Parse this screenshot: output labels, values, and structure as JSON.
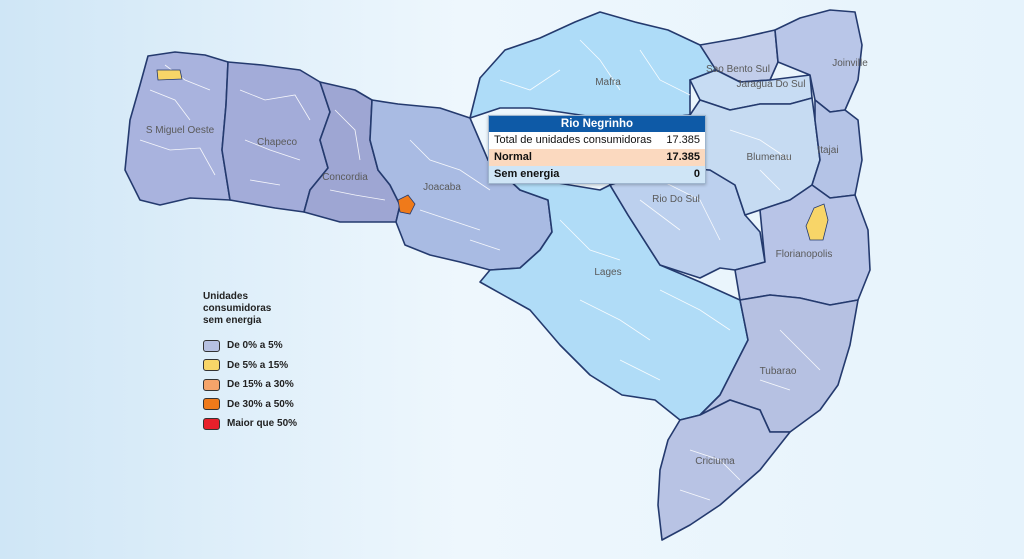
{
  "colors": {
    "low": "#b6c1e2",
    "low_dark": "#9aa5d3",
    "highlight_region": "#aed9f7",
    "yellow": "#f8d568",
    "orange": "#ef7a1a",
    "border": "#243a6e"
  },
  "regions": [
    {
      "id": "miguel-oeste",
      "label": "S Miguel Oeste",
      "color": "#a9b3de"
    },
    {
      "id": "chapeco",
      "label": "Chapeco",
      "color": "#a3acd9"
    },
    {
      "id": "concordia",
      "label": "Concordia",
      "color": "#9ea6d3"
    },
    {
      "id": "joacaba",
      "label": "Joacaba",
      "color": "#a9bbe3"
    },
    {
      "id": "mafra",
      "label": "Mafra",
      "color": "#aedcf8"
    },
    {
      "id": "lages",
      "label": "Lages",
      "color": "#b0dcf7"
    },
    {
      "id": "rio-do-sul",
      "label": "Rio Do Sul",
      "color": "#bcd0ee"
    },
    {
      "id": "sao-bento-sul",
      "label": "Sao Bento Sul",
      "color": "#c2cdea"
    },
    {
      "id": "jaragua-do-sul",
      "label": "Jaragua Do Sul",
      "color": "#c7dcf3"
    },
    {
      "id": "joinville",
      "label": "Joinville",
      "color": "#b9c6e8"
    },
    {
      "id": "blumenau",
      "label": "Blumenau",
      "color": "#c6dbf2"
    },
    {
      "id": "itajai",
      "label": "Itajai",
      "color": "#b4c3e6"
    },
    {
      "id": "florianopolis",
      "label": "Florianopolis",
      "color": "#b8c4e7"
    },
    {
      "id": "tubarao",
      "label": "Tubarao",
      "color": "#b6c1e2"
    },
    {
      "id": "criciuma",
      "label": "Criciuma",
      "color": "#b8c3e4"
    }
  ],
  "tooltip": {
    "title": "Rio Negrinho",
    "total_label": "Total de unidades consumidoras",
    "total_value": "17.385",
    "normal_label": "Normal",
    "normal_value": "17.385",
    "sem_label": "Sem energia",
    "sem_value": "0"
  },
  "legend": {
    "title": "Unidades consumidoras sem energia",
    "items": [
      {
        "label": "De 0% a 5%",
        "color": "#b6c1e2"
      },
      {
        "label": "De 5% a 15%",
        "color": "#f8d568"
      },
      {
        "label": "De 15% a 30%",
        "color": "#f5a46a"
      },
      {
        "label": "De 30% a 50%",
        "color": "#ef7a1a"
      },
      {
        "label": "Maior que 50%",
        "color": "#e8202a"
      }
    ]
  }
}
